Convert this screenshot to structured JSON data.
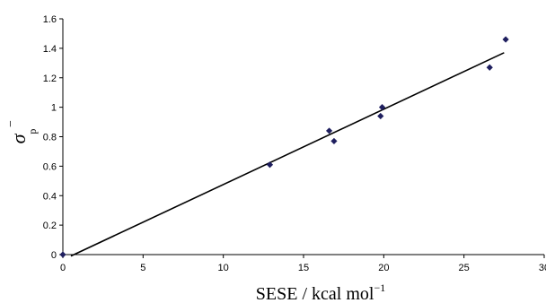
{
  "chart_data": {
    "type": "scatter",
    "title": "",
    "xlabel": {
      "main": "SESE / kcal mol",
      "sup": "−1"
    },
    "ylabel": {
      "symbol": "σ",
      "sub": "p",
      "sup": "−"
    },
    "xlim": [
      0,
      30
    ],
    "ylim": [
      0,
      1.6
    ],
    "x_ticks": [
      "0",
      "5",
      "10",
      "15",
      "20",
      "25",
      "30"
    ],
    "y_ticks": [
      "0",
      "0.2",
      "0.4",
      "0.6",
      "0.8",
      "1",
      "1.2",
      "1.4",
      "1.6"
    ],
    "grid": false,
    "legend": "none",
    "marker": "diamond",
    "marker_color": "#1f1f5f",
    "series": [
      {
        "points": [
          {
            "x": 0.0,
            "y": 0.0
          },
          {
            "x": 12.9,
            "y": 0.61
          },
          {
            "x": 16.6,
            "y": 0.84
          },
          {
            "x": 16.9,
            "y": 0.77
          },
          {
            "x": 19.8,
            "y": 0.94
          },
          {
            "x": 19.9,
            "y": 1.0
          },
          {
            "x": 26.6,
            "y": 1.27
          },
          {
            "x": 27.6,
            "y": 1.46
          }
        ]
      }
    ],
    "trendline": {
      "x_start": 0.5,
      "y_start": -0.01,
      "x_end": 27.5,
      "y_end": 1.37,
      "color": "#000000"
    }
  }
}
